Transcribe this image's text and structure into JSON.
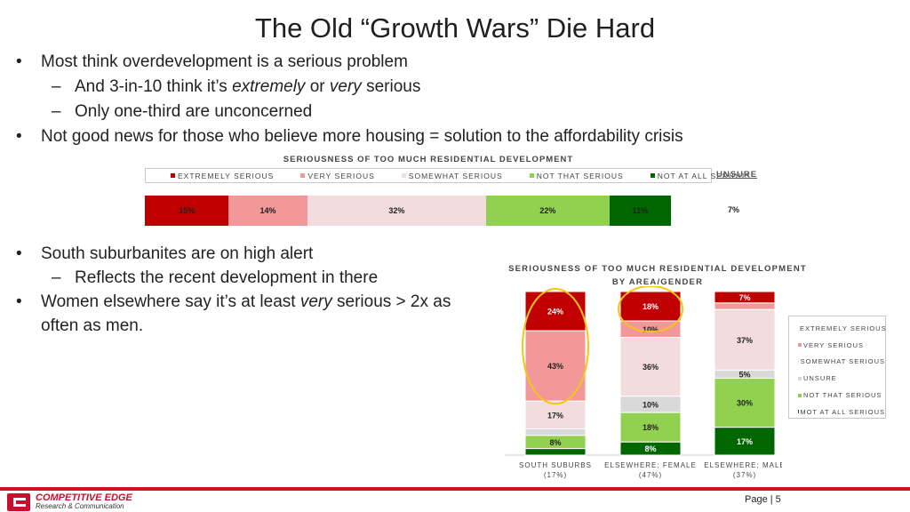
{
  "title": "The Old “Growth Wars” Die Hard",
  "bullets": {
    "b1": "Most think overdevelopment is a serious problem",
    "b1a_pre": "And 3-in-10 think it’s ",
    "b1a_em1": "extremely",
    "b1a_mid": " or ",
    "b1a_em2": "very",
    "b1a_post": " serious",
    "b1b": "Only one-third are unconcerned",
    "b2": "Not good news for those who believe more housing = solution to the affordability crisis",
    "b3": "South suburbanites are on high alert",
    "b3a": "Reflects the recent development in there",
    "b4_pre": "Women elsewhere say it’s at least ",
    "b4_em": "very",
    "b4_post": " serious > 2x as often as men."
  },
  "markers": {
    "bullet": "•",
    "dash": "–"
  },
  "colors": {
    "extremely": "#c00000",
    "very": "#f29898",
    "somewhat": "#f2dcdd",
    "unsure": "#d9d9d9",
    "not_that": "#92d050",
    "not_at_all": "#006600",
    "highlight": "#f5c518",
    "brand_red": "#d0101b"
  },
  "chart_data": [
    {
      "type": "bar",
      "orientation": "horizontal-stacked",
      "title": "SERIOUSNESS OF TOO MUCH RESIDENTIAL DEVELOPMENT",
      "legend": [
        "EXTREMELY SERIOUS",
        "VERY SERIOUS",
        "SOMEWHAT SERIOUS",
        "NOT THAT SERIOUS",
        "NOT AT ALL SERIOUS"
      ],
      "legend_placement": "top",
      "series": [
        {
          "name": "EXTREMELY SERIOUS",
          "values": [
            15
          ],
          "label": "15%"
        },
        {
          "name": "VERY SERIOUS",
          "values": [
            14
          ],
          "label": "14%"
        },
        {
          "name": "SOMEWHAT SERIOUS",
          "values": [
            32
          ],
          "label": "32%"
        },
        {
          "name": "NOT THAT SERIOUS",
          "values": [
            22
          ],
          "label": "22%"
        },
        {
          "name": "NOT AT ALL SERIOUS",
          "values": [
            11
          ],
          "label": "11%"
        }
      ],
      "unsure_label": "UNSURE",
      "unsure_value": "7%"
    },
    {
      "type": "bar",
      "orientation": "vertical-stacked",
      "title": "SERIOUSNESS OF TOO MUCH RESIDENTIAL DEVELOPMENT",
      "subtitle": "BY AREA/GENDER",
      "categories": [
        "SOUTH SUBURBS",
        "ELSEWHERE; FEMALE",
        "ELSEWHERE; MALE"
      ],
      "category_shares": [
        "(17%)",
        "(47%)",
        "(37%)"
      ],
      "legend": [
        "EXTREMELY SERIOUS",
        "VERY SERIOUS",
        "SOMEWHAT SERIOUS",
        "UNSURE",
        "NOT THAT SERIOUS",
        "MOT AT ALL SERIOUS"
      ],
      "legend_placement": "right",
      "series": [
        {
          "name": "EXTREMELY SERIOUS",
          "values": [
            24,
            18,
            7
          ]
        },
        {
          "name": "VERY SERIOUS",
          "values": [
            43,
            10,
            4
          ]
        },
        {
          "name": "SOMEWHAT SERIOUS",
          "values": [
            17,
            36,
            37
          ]
        },
        {
          "name": "UNSURE",
          "values": [
            4,
            10,
            5
          ]
        },
        {
          "name": "NOT THAT SERIOUS",
          "values": [
            8,
            18,
            30
          ]
        },
        {
          "name": "NOT AT ALL SERIOUS",
          "values": [
            4,
            8,
            17
          ]
        }
      ],
      "highlighted": [
        "SOUTH SUBURBS: EXTREMELY + VERY SERIOUS",
        "ELSEWHERE; FEMALE: EXTREMELY SERIOUS"
      ]
    }
  ],
  "footer": {
    "logo_name": "COMPETITIVE EDGE",
    "logo_sub": "Research & Communication",
    "page": "Page | 5"
  }
}
